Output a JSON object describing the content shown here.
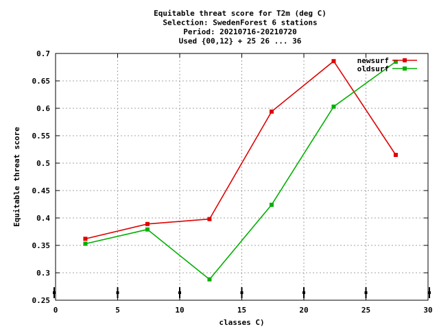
{
  "chart_data": {
    "type": "line",
    "title_lines": [
      "Equitable threat score  for T2m (deg C)",
      "Selection: SwedenForest      6 stations",
      "Period: 20210716-20210720",
      "Used {00,12} + 25 26 ... 36"
    ],
    "xlabel": "classes C)",
    "ylabel": "Equitable threat score",
    "xlim": [
      0,
      30
    ],
    "ylim": [
      0.25,
      0.7
    ],
    "x_ticks": [
      0,
      5,
      10,
      15,
      20,
      25,
      30
    ],
    "y_ticks": [
      0.25,
      0.3,
      0.35,
      0.4,
      0.45,
      0.5,
      0.55,
      0.6,
      0.65,
      0.7
    ],
    "x_tick_labels": [
      "0",
      "5",
      "10",
      "15",
      "20",
      "25",
      "30"
    ],
    "y_tick_labels": [
      "0.25",
      "0.3",
      "0.35",
      "0.4",
      "0.45",
      "0.5",
      "0.55",
      "0.6",
      "0.65",
      "0.7"
    ],
    "grid": true,
    "legend_position": "top-right",
    "bottom_markers_x": [
      0,
      5,
      10,
      15,
      20,
      25,
      30
    ],
    "series": [
      {
        "name": "newsurf",
        "color": "#e00000",
        "x": [
          2.4,
          7.4,
          12.4,
          17.4,
          22.4,
          27.4
        ],
        "y": [
          0.362,
          0.389,
          0.398,
          0.594,
          0.686,
          0.515
        ]
      },
      {
        "name": "oldsurf",
        "color": "#00b000",
        "x": [
          2.4,
          7.4,
          12.4,
          17.4,
          22.4,
          27.4
        ],
        "y": [
          0.353,
          0.379,
          0.288,
          0.424,
          0.603,
          0.685
        ]
      }
    ]
  }
}
